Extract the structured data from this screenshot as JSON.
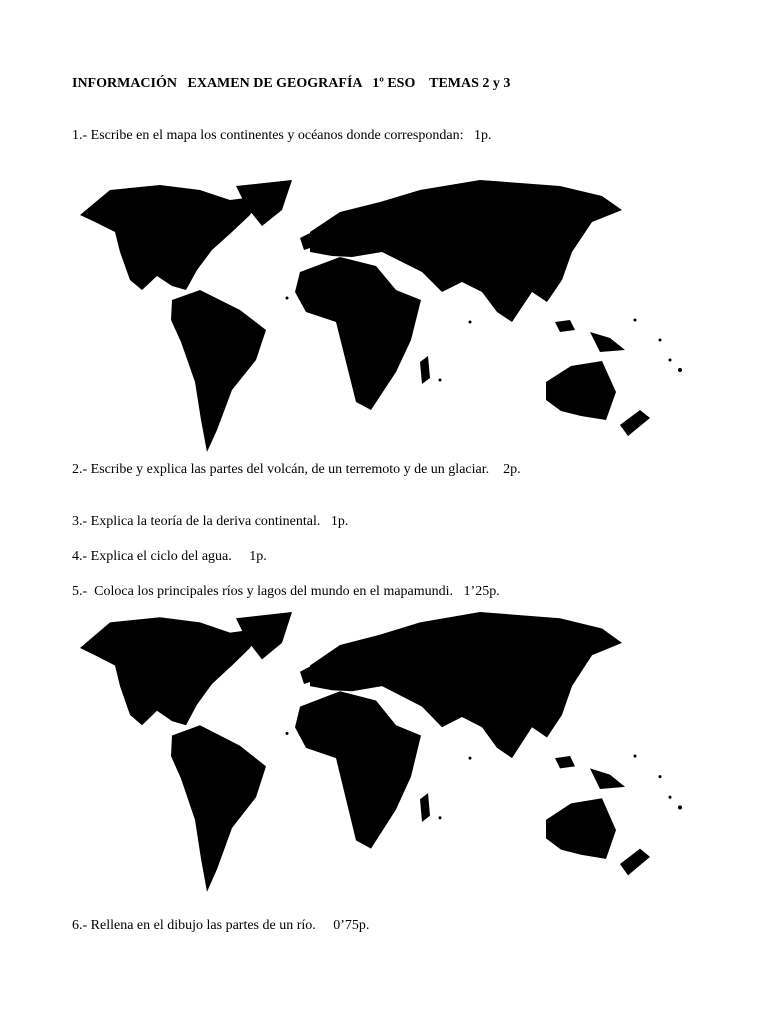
{
  "title": "INFORMACIÓN   EXAMEN DE GEOGRAFÍA   1º ESO    TEMAS 2 y 3",
  "questions": [
    "1.- Escribe en el mapa los continentes y océanos donde correspondan:   1p.",
    "2.- Escribe y explica las partes del volcán, de un terremoto y de un glaciar.    2p.",
    "3.- Explica la teoría de la deriva continental.   1p.",
    "4.- Explica el ciclo del agua.     1p.",
    "5.-  Coloca los principales ríos y lagos del mundo en el mapamundi.   1’25p.",
    "6.- Rellena en el dibujo las partes de un río.     0’75p."
  ],
  "maps": [
    "blank-world-map",
    "blank-world-map"
  ]
}
